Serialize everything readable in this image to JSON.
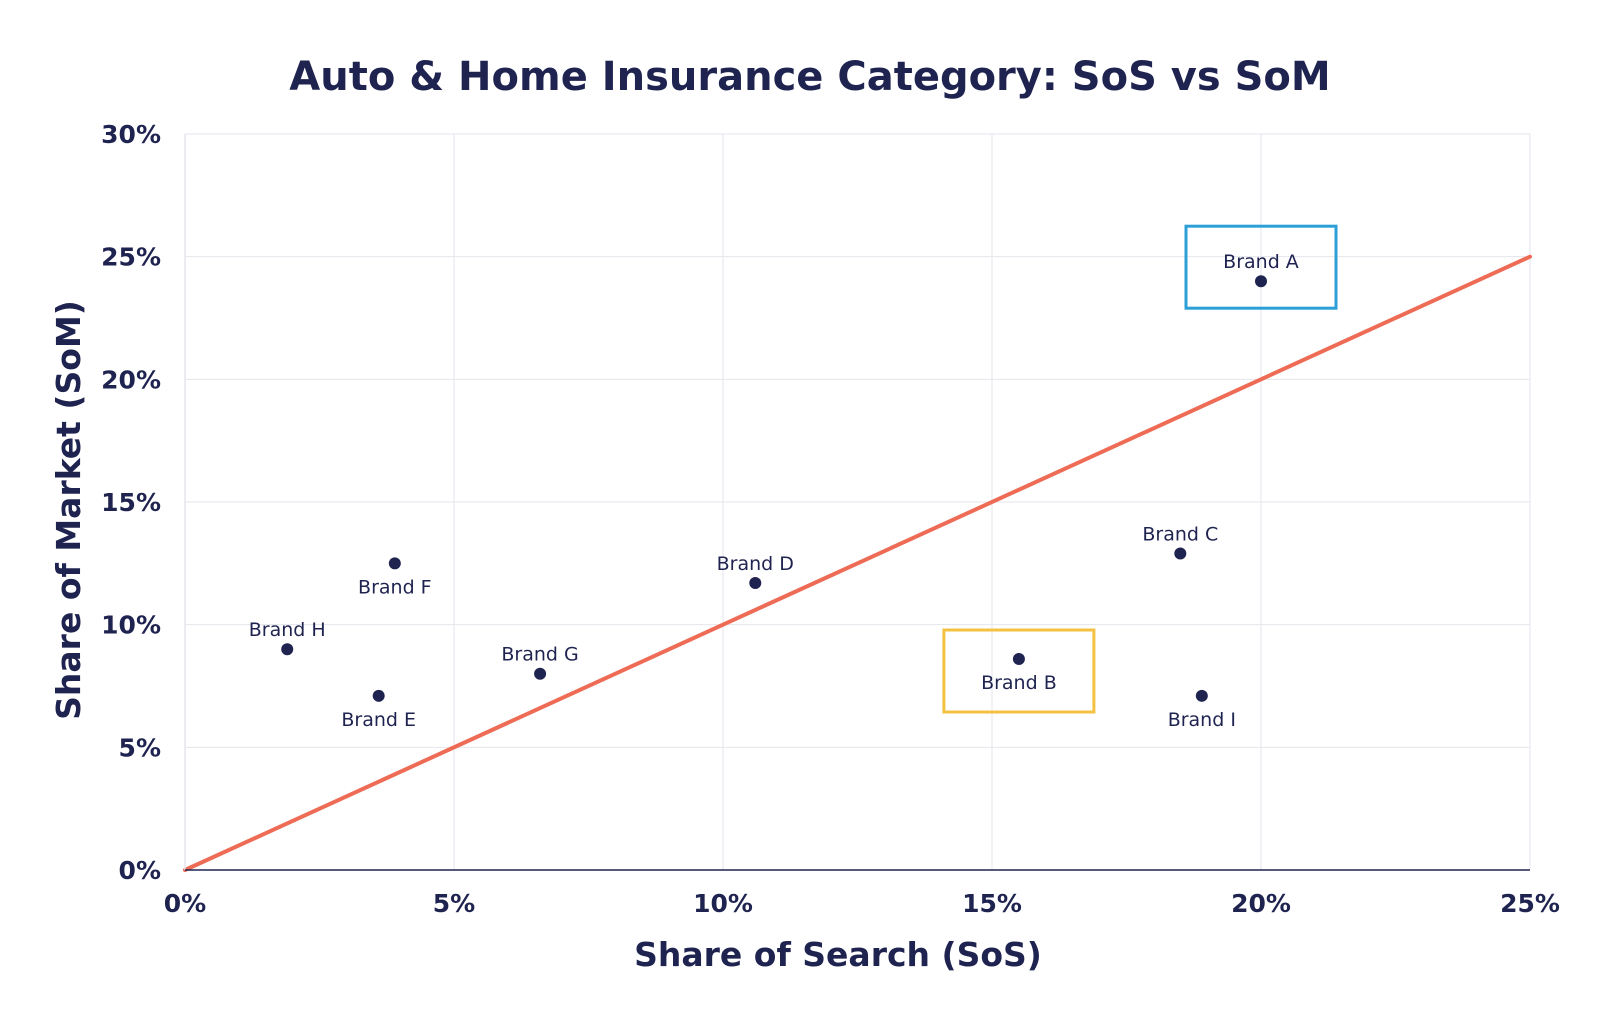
{
  "chart_data": {
    "type": "scatter",
    "title": "Auto & Home Insurance Category: SoS vs SoM",
    "xlabel": "Share of Search (SoS)",
    "ylabel": "Share of Market (SoM)",
    "xlim": [
      0,
      25
    ],
    "ylim": [
      0,
      30
    ],
    "x_ticks": [
      0,
      5,
      10,
      15,
      20,
      25
    ],
    "y_ticks": [
      0,
      5,
      10,
      15,
      20,
      25,
      30
    ],
    "x_tick_labels": [
      "0%",
      "5%",
      "10%",
      "15%",
      "20%",
      "25%"
    ],
    "y_tick_labels": [
      "0%",
      "5%",
      "10%",
      "15%",
      "20%",
      "25%",
      "30%"
    ],
    "grid": true,
    "points": [
      {
        "label": "Brand A",
        "x": 20.0,
        "y": 24.0,
        "label_position": "above",
        "highlight": "blue"
      },
      {
        "label": "Brand B",
        "x": 15.5,
        "y": 8.6,
        "label_position": "below",
        "highlight": "yellow"
      },
      {
        "label": "Brand C",
        "x": 18.5,
        "y": 12.9,
        "label_position": "above"
      },
      {
        "label": "Brand D",
        "x": 10.6,
        "y": 11.7,
        "label_position": "above"
      },
      {
        "label": "Brand E",
        "x": 3.6,
        "y": 7.1,
        "label_position": "below"
      },
      {
        "label": "Brand F",
        "x": 3.9,
        "y": 12.5,
        "label_position": "below"
      },
      {
        "label": "Brand G",
        "x": 6.6,
        "y": 8.0,
        "label_position": "above"
      },
      {
        "label": "Brand H",
        "x": 1.9,
        "y": 9.0,
        "label_position": "above"
      },
      {
        "label": "Brand I",
        "x": 18.9,
        "y": 7.1,
        "label_position": "below"
      }
    ],
    "reference_line": {
      "from": [
        0,
        0
      ],
      "to": [
        25,
        25
      ]
    },
    "colors": {
      "text": "#1f2350",
      "point": "#1f2350",
      "reference_line": "#ee6b55",
      "grid": "#e4e6ec",
      "highlight_blue": "#2b9fd6",
      "highlight_yellow": "#f4c242"
    }
  }
}
